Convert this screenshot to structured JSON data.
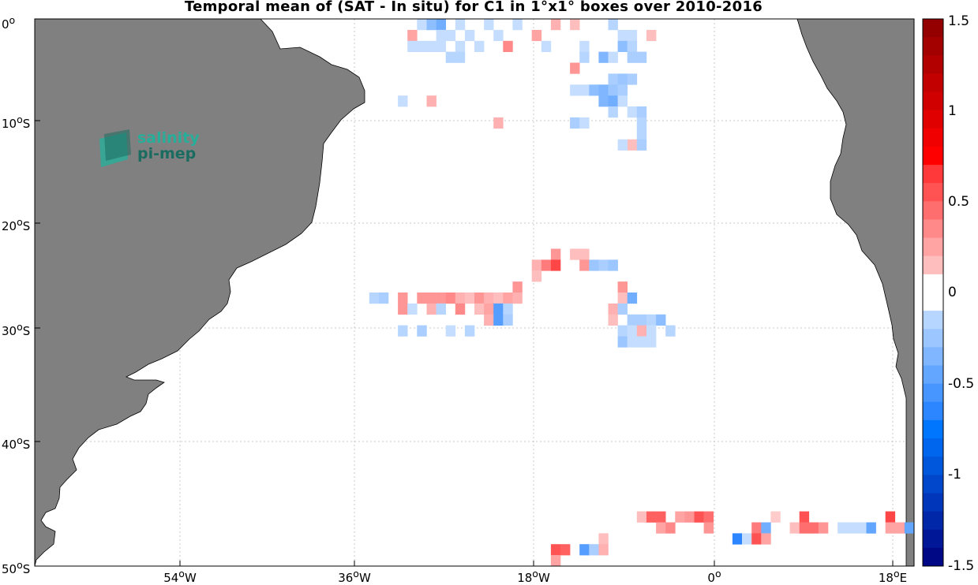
{
  "title": "Temporal mean of (SAT - In situ) for C1 in 1°x1° boxes over 2010-2016",
  "logo": {
    "line1": "salinity",
    "line2": "pi-mep"
  },
  "axes": {
    "y_ticks": [
      {
        "num": "0",
        "deg": "o",
        "hem": ""
      },
      {
        "num": "10",
        "deg": "o",
        "hem": "S"
      },
      {
        "num": "20",
        "deg": "o",
        "hem": "S"
      },
      {
        "num": "30",
        "deg": "o",
        "hem": "S"
      },
      {
        "num": "40",
        "deg": "o",
        "hem": "S"
      },
      {
        "num": "50",
        "deg": "o",
        "hem": "S"
      }
    ],
    "x_ticks": [
      {
        "num": "54",
        "deg": "o",
        "hem": "W"
      },
      {
        "num": "36",
        "deg": "o",
        "hem": "W"
      },
      {
        "num": "18",
        "deg": "o",
        "hem": "W"
      },
      {
        "num": "0",
        "deg": "o",
        "hem": ""
      },
      {
        "num": "18",
        "deg": "o",
        "hem": "E"
      }
    ]
  },
  "colorbar": {
    "labels": [
      "1.5",
      "1",
      "0.5",
      "0",
      "-0.5",
      "-1",
      "-1.5"
    ],
    "range": [
      -1.5,
      1.5
    ]
  },
  "chart_data": {
    "type": "heatmap",
    "title": "Temporal mean of (SAT - In situ) for C1 in 1°x1° boxes over 2010-2016",
    "xlim": [
      -72,
      20
    ],
    "ylim": [
      -50,
      0
    ],
    "color_range": [
      -1.5,
      1.5
    ],
    "cells": [
      [
        -32,
        -1,
        -0.1
      ],
      [
        -31,
        -1,
        -0.3
      ],
      [
        -30,
        -1,
        -0.4
      ],
      [
        -28,
        -1,
        -0.1
      ],
      [
        -22,
        -1,
        -0.1
      ],
      [
        -25,
        -1,
        -0.1
      ],
      [
        -18,
        -1,
        0.2
      ],
      [
        -16,
        -1,
        0.15
      ],
      [
        -12,
        -1,
        -0.15
      ],
      [
        -33,
        -2,
        0.25
      ],
      [
        -30,
        -2,
        -0.1
      ],
      [
        -29,
        -2,
        -0.1
      ],
      [
        -27,
        -2,
        -0.1
      ],
      [
        -24,
        -2,
        -0.1
      ],
      [
        -20,
        -2,
        0.25
      ],
      [
        -11,
        -2,
        -0.1
      ],
      [
        -10,
        -2,
        -0.1
      ],
      [
        -8,
        -2,
        0.15
      ],
      [
        -33,
        -3,
        -0.1
      ],
      [
        -32,
        -3,
        -0.1
      ],
      [
        -31,
        -3,
        -0.1
      ],
      [
        -30,
        -3,
        -0.1
      ],
      [
        -28,
        -3,
        -0.1
      ],
      [
        -26,
        -3,
        -0.1
      ],
      [
        -23,
        -3,
        0.35
      ],
      [
        -19,
        -3,
        -0.1
      ],
      [
        -15,
        -3,
        -0.1
      ],
      [
        -11,
        -3,
        -0.3
      ],
      [
        -10,
        -3,
        -0.15
      ],
      [
        -29,
        -4,
        -0.15
      ],
      [
        -28,
        -4,
        -0.15
      ],
      [
        -15,
        -4,
        -0.15
      ],
      [
        -13,
        -4,
        -0.35
      ],
      [
        -12,
        -4,
        -0.1
      ],
      [
        -10,
        -4,
        -0.2
      ],
      [
        -9,
        -4,
        -0.2
      ],
      [
        -16,
        -5,
        0.3
      ],
      [
        -12,
        -6,
        -0.2
      ],
      [
        -11,
        -6,
        -0.25
      ],
      [
        -10,
        -6,
        -0.2
      ],
      [
        -16,
        -7,
        -0.1
      ],
      [
        -15,
        -7,
        -0.1
      ],
      [
        -14,
        -7,
        -0.3
      ],
      [
        -13,
        -7,
        -0.35
      ],
      [
        -12,
        -7,
        -0.25
      ],
      [
        -11,
        -7,
        -0.2
      ],
      [
        -34,
        -8,
        -0.1
      ],
      [
        -31,
        -8,
        0.2
      ],
      [
        -13,
        -8,
        -0.35
      ],
      [
        -12,
        -8,
        -0.4
      ],
      [
        -11,
        -8,
        -0.1
      ],
      [
        -12,
        -9,
        -0.15
      ],
      [
        -10,
        -9,
        -0.1
      ],
      [
        -9,
        -9,
        -0.2
      ],
      [
        -24,
        -10,
        0.2
      ],
      [
        -16,
        -10,
        -0.2
      ],
      [
        -15,
        -10,
        -0.1
      ],
      [
        -9,
        -10,
        -0.15
      ],
      [
        -9,
        -11,
        -0.15
      ],
      [
        -10,
        -12,
        0.15
      ],
      [
        -9,
        -12,
        -0.2
      ],
      [
        -11,
        -12,
        -0.1
      ],
      [
        -18,
        -22,
        0.3
      ],
      [
        -16,
        -22,
        0.15
      ],
      [
        -15,
        -22,
        0.15
      ],
      [
        -20,
        -23,
        0.2
      ],
      [
        -19,
        -23,
        0.4
      ],
      [
        -18,
        -23,
        0.6
      ],
      [
        -15,
        -23,
        0.3
      ],
      [
        -14,
        -23,
        -0.25
      ],
      [
        -13,
        -23,
        -0.2
      ],
      [
        -12,
        -23,
        -0.25
      ],
      [
        -20,
        -24,
        0.15
      ],
      [
        -22,
        -25,
        0.3
      ],
      [
        -11,
        -25,
        0.3
      ],
      [
        -37,
        -26,
        -0.15
      ],
      [
        -36,
        -26,
        -0.2
      ],
      [
        -34,
        -26,
        0.3
      ],
      [
        -32,
        -26,
        0.3
      ],
      [
        -31,
        -26,
        0.3
      ],
      [
        -30,
        -26,
        0.3
      ],
      [
        -29,
        -26,
        0.35
      ],
      [
        -28,
        -26,
        0.2
      ],
      [
        -27,
        -26,
        0.15
      ],
      [
        -26,
        -26,
        0.3
      ],
      [
        -25,
        -26,
        0.2
      ],
      [
        -24,
        -26,
        0.15
      ],
      [
        -23,
        -26,
        0.25
      ],
      [
        -22,
        -26,
        0.2
      ],
      [
        -11,
        -26,
        0.15
      ],
      [
        -10,
        -26,
        -0.4
      ],
      [
        -34,
        -27,
        0.3
      ],
      [
        -33,
        -27,
        -0.1
      ],
      [
        -31,
        -27,
        0.2
      ],
      [
        -30,
        -27,
        -0.15
      ],
      [
        -28,
        -27,
        0.35
      ],
      [
        -26,
        -27,
        0.15
      ],
      [
        -25,
        -27,
        0.25
      ],
      [
        -24,
        -27,
        -0.5
      ],
      [
        -23,
        -27,
        -0.15
      ],
      [
        -12,
        -27,
        0.2
      ],
      [
        -11,
        -27,
        -0.2
      ],
      [
        -25,
        -28,
        0.2
      ],
      [
        -24,
        -28,
        -0.5
      ],
      [
        -23,
        -28,
        -0.2
      ],
      [
        -12,
        -28,
        0.15
      ],
      [
        -10,
        -28,
        -0.2
      ],
      [
        -9,
        -28,
        -0.2
      ],
      [
        -8,
        -28,
        -0.15
      ],
      [
        -7,
        -28,
        -0.3
      ],
      [
        -34,
        -29,
        -0.15
      ],
      [
        -32,
        -29,
        -0.2
      ],
      [
        -29,
        -29,
        -0.1
      ],
      [
        -27,
        -29,
        -0.15
      ],
      [
        -11,
        -29,
        -0.15
      ],
      [
        -10,
        -29,
        -0.1
      ],
      [
        -9,
        -29,
        0.2
      ],
      [
        -8,
        -29,
        -0.1
      ],
      [
        -6,
        -29,
        -0.15
      ],
      [
        -11,
        -30,
        -0.25
      ],
      [
        -10,
        -30,
        -0.1
      ],
      [
        -9,
        -30,
        -0.1
      ],
      [
        -8,
        -30,
        -0.1
      ],
      [
        -9,
        -46,
        0.15
      ],
      [
        -8,
        -46,
        0.5
      ],
      [
        -7,
        -46,
        0.5
      ],
      [
        -5,
        -46,
        0.25
      ],
      [
        -4,
        -46,
        0.3
      ],
      [
        -3,
        -46,
        0.55
      ],
      [
        -2,
        -46,
        0.45
      ],
      [
        5,
        -46,
        0.1
      ],
      [
        8,
        -46,
        0.55
      ],
      [
        17,
        -46,
        0.6
      ],
      [
        -7,
        -47,
        0.25
      ],
      [
        -6,
        -47,
        0.35
      ],
      [
        -2,
        -47,
        0.3
      ],
      [
        3,
        -47,
        0.4
      ],
      [
        4,
        -47,
        -0.4
      ],
      [
        7,
        -47,
        0.15
      ],
      [
        8,
        -47,
        0.45
      ],
      [
        9,
        -47,
        0.45
      ],
      [
        10,
        -47,
        0.3
      ],
      [
        12,
        -47,
        -0.1
      ],
      [
        13,
        -47,
        -0.1
      ],
      [
        14,
        -47,
        -0.1
      ],
      [
        15,
        -47,
        -0.45
      ],
      [
        17,
        -47,
        0.25
      ],
      [
        18,
        -47,
        0.25
      ],
      [
        19,
        -47,
        -0.45
      ],
      [
        -13,
        -48,
        0.15
      ],
      [
        1,
        -48,
        -0.65
      ],
      [
        2,
        -48,
        -0.1
      ],
      [
        3,
        -48,
        0.55
      ],
      [
        4,
        -48,
        0.25
      ],
      [
        -18,
        -49,
        0.55
      ],
      [
        -17,
        -49,
        0.5
      ],
      [
        -15,
        -49,
        -0.5
      ],
      [
        -14,
        -49,
        -0.2
      ],
      [
        -13,
        -49,
        0.2
      ],
      [
        -18,
        -50,
        0.25
      ]
    ]
  }
}
